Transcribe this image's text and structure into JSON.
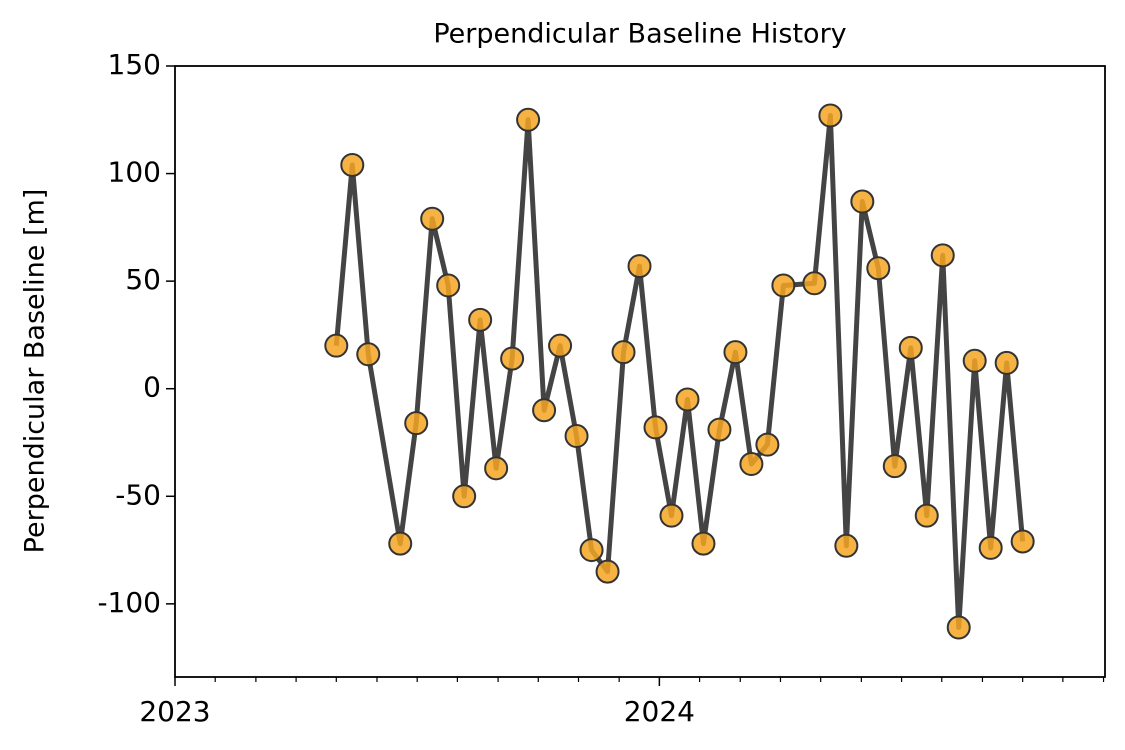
{
  "chart_data": {
    "type": "line",
    "title": "Perpendicular Baseline History",
    "ylabel": "Perpendicular Baseline [m]",
    "x": [
      2023.333,
      2023.366,
      2023.399,
      2023.465,
      2023.498,
      2023.531,
      2023.564,
      2023.597,
      2023.63,
      2023.663,
      2023.696,
      2023.729,
      2023.762,
      2023.795,
      2023.829,
      2023.86,
      2023.893,
      2023.926,
      2023.959,
      2023.992,
      2024.025,
      2024.058,
      2024.091,
      2024.124,
      2024.157,
      2024.19,
      2024.223,
      2024.256,
      2024.32,
      2024.353,
      2024.386,
      2024.419,
      2024.452,
      2024.486,
      2024.519,
      2024.552,
      2024.585,
      2024.618,
      2024.651,
      2024.684,
      2024.717,
      2024.75
    ],
    "series": [
      {
        "line_color": "#444444",
        "color": "#f5a623",
        "values": [
          20,
          104,
          16,
          -72,
          -16,
          79,
          48,
          -50,
          32,
          -37,
          14,
          125,
          -10,
          20,
          -22,
          -75,
          -85,
          17,
          57,
          -18,
          -59,
          -5,
          -72,
          -19,
          17,
          -35,
          -26,
          48,
          49,
          127,
          -73,
          87,
          56,
          -36,
          19,
          -59,
          62,
          -111,
          13,
          -74,
          12,
          -71
        ]
      }
    ],
    "xlim": [
      2023,
      2024.92
    ],
    "xticks": [
      2023,
      2024
    ],
    "xminorticks": [
      2023.083,
      2023.167,
      2023.25,
      2023.333,
      2023.417,
      2023.5,
      2023.583,
      2023.667,
      2023.75,
      2023.833,
      2023.917,
      2024.083,
      2024.167,
      2024.25,
      2024.333,
      2024.417,
      2024.5,
      2024.583,
      2024.667,
      2024.75,
      2024.833,
      2024.917
    ],
    "ylim": [
      -134,
      150
    ],
    "yticks": [
      -100,
      -50,
      0,
      50,
      100,
      150
    ]
  }
}
